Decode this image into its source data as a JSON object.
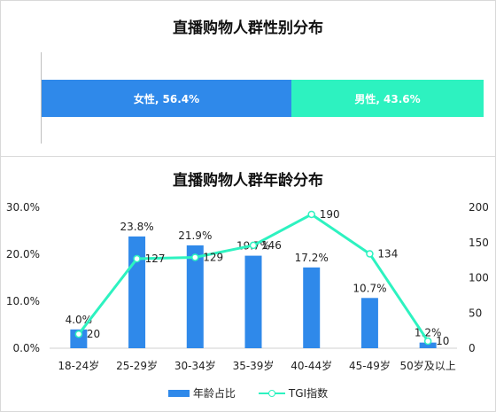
{
  "gender": {
    "title": "直播购物人群性别分布",
    "female_label": "女性, 56.4%",
    "male_label": "男性, 43.6%",
    "colors": {
      "female": "#2f89ea",
      "male": "#2df2c0"
    }
  },
  "chart_data": {
    "type": "bar",
    "title": "直播购物人群年龄分布",
    "categories": [
      "18-24岁",
      "25-29岁",
      "30-34岁",
      "35-39岁",
      "40-44岁",
      "45-49岁",
      "50岁及以上"
    ],
    "series": [
      {
        "name": "年龄占比",
        "type": "bar",
        "axis": "left",
        "color": "#2f89ea",
        "values": [
          4.0,
          23.8,
          21.9,
          19.7,
          17.2,
          10.7,
          1.2
        ],
        "labels": [
          "4.0%",
          "23.8%",
          "21.9%",
          "19.7%",
          "17.2%",
          "10.7%",
          "1.2%"
        ]
      },
      {
        "name": "TGI指数",
        "type": "line",
        "axis": "right",
        "color": "#2df2c0",
        "values": [
          20,
          127,
          129,
          146,
          190,
          134,
          10
        ],
        "labels": [
          "20",
          "127",
          "129",
          "146",
          "190",
          "134",
          "10"
        ]
      }
    ],
    "y_left": {
      "min": 0,
      "max": 30,
      "ticks": [
        "0.0%",
        "10.0%",
        "20.0%",
        "30.0%"
      ]
    },
    "y_right": {
      "min": 0,
      "max": 200,
      "ticks": [
        "0",
        "50",
        "100",
        "150",
        "200"
      ]
    },
    "legend_position": "bottom"
  }
}
